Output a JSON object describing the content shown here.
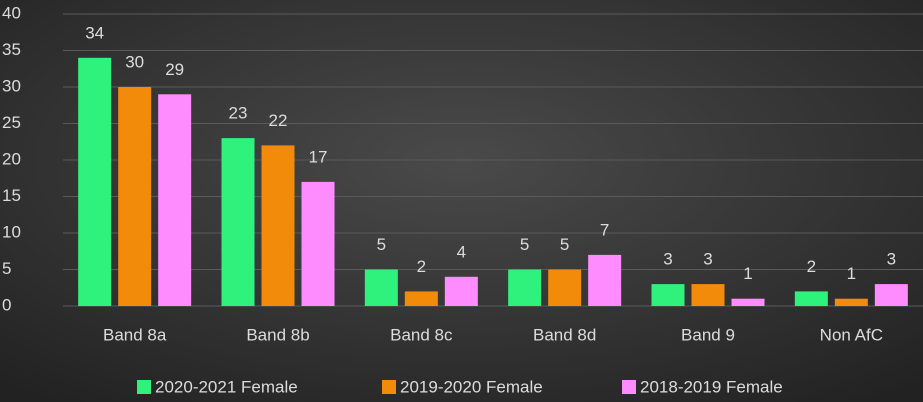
{
  "chart_data": {
    "type": "bar",
    "categories": [
      "Band 8a",
      "Band 8b",
      "Band 8c",
      "Band 8d",
      "Band 9",
      "Non AfC"
    ],
    "series": [
      {
        "name": "2020-2021 Female",
        "color": "#2ff27c",
        "values": [
          34,
          23,
          5,
          5,
          3,
          2
        ]
      },
      {
        "name": "2019-2020 Female",
        "color": "#f28a0a",
        "values": [
          30,
          22,
          2,
          5,
          3,
          1
        ]
      },
      {
        "name": "2018-2019 Female",
        "color": "#ff8cff",
        "values": [
          29,
          17,
          4,
          7,
          1,
          3
        ]
      }
    ],
    "ylim": [
      0,
      40
    ],
    "yticks": [
      0,
      5,
      10,
      15,
      20,
      25,
      30,
      35,
      40
    ],
    "grid": true,
    "legend": "bottom"
  }
}
